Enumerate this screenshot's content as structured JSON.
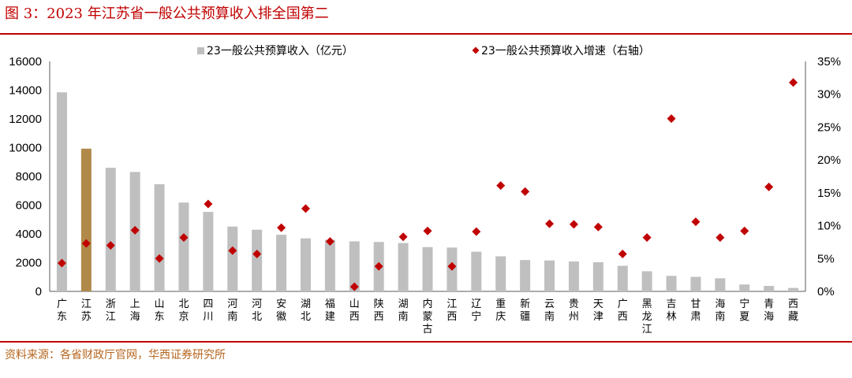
{
  "title": "图 3：2023 年江苏省一般公共预算收入排全国第二",
  "source": "资料来源：各省财政厅官网，华西证券研究所",
  "colors": {
    "bar": "#bfbfbf",
    "highlight_bar": "#b08a4a",
    "marker": "#c00000",
    "rule": "#c00000"
  },
  "chart_data": {
    "type": "bar",
    "categories": [
      "广东",
      "江苏",
      "浙江",
      "上海",
      "山东",
      "北京",
      "四川",
      "河南",
      "河北",
      "安徽",
      "湖北",
      "福建",
      "山西",
      "陕西",
      "湖南",
      "内蒙古",
      "江西",
      "辽宁",
      "重庆",
      "新疆",
      "云南",
      "贵州",
      "天津",
      "广西",
      "黑龙江",
      "吉林",
      "甘肃",
      "海南",
      "宁夏",
      "青海",
      "西藏"
    ],
    "highlight_category": "江苏",
    "series": [
      {
        "name": "23一般公共预算收入（亿元）",
        "kind": "bar",
        "axis": "left",
        "values": [
          13850,
          9930,
          8600,
          8310,
          7460,
          6180,
          5530,
          4510,
          4290,
          3940,
          3690,
          3590,
          3480,
          3440,
          3360,
          3080,
          3050,
          2760,
          2440,
          2180,
          2150,
          2080,
          2030,
          1780,
          1400,
          1080,
          1010,
          910,
          480,
          380,
          240
        ]
      },
      {
        "name": "23一般公共预算收入增速（右轴）",
        "kind": "scatter",
        "axis": "right",
        "values": [
          4.3,
          7.3,
          7.0,
          9.3,
          5.0,
          8.2,
          13.3,
          6.2,
          5.7,
          9.7,
          12.6,
          7.6,
          0.7,
          3.8,
          8.3,
          9.2,
          3.8,
          9.1,
          16.1,
          15.2,
          10.3,
          10.2,
          9.8,
          5.7,
          8.2,
          26.3,
          10.6,
          8.2,
          9.2,
          15.9,
          31.8
        ]
      }
    ],
    "left_axis": {
      "ylim": [
        0,
        16000
      ],
      "ticks": [
        "0",
        "2000",
        "4000",
        "6000",
        "8000",
        "10000",
        "12000",
        "14000",
        "16000"
      ]
    },
    "right_axis": {
      "ylim": [
        0,
        35
      ],
      "ticks": [
        "0%",
        "5%",
        "10%",
        "15%",
        "20%",
        "25%",
        "30%",
        "35%"
      ]
    },
    "grid": false,
    "legend_position": "top"
  }
}
